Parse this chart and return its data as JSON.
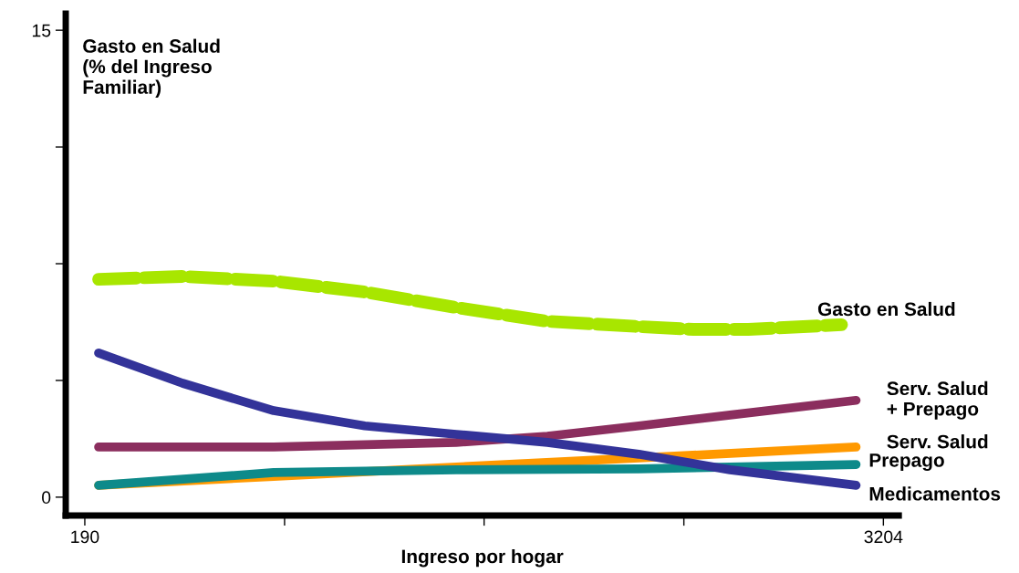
{
  "chart_data": {
    "type": "line",
    "ylabel": "Gasto en Salud\n(% del Ingreso\nFamiliar)",
    "xlabel": "Ingreso por hogar",
    "xlim": [
      118,
      3262
    ],
    "ylim": [
      -0.59,
      15.53
    ],
    "xticks": [
      190,
      {
        "value": 944,
        "label": null
      },
      {
        "value": 1697,
        "label": null
      },
      {
        "value": 2451,
        "label": null
      },
      3204
    ],
    "yticks": [
      0,
      {
        "value": 3.75,
        "label": null
      },
      {
        "value": 7.5,
        "label": null
      },
      {
        "value": 11.25,
        "label": null
      },
      15
    ],
    "grid": false,
    "legend": false,
    "series": [
      {
        "name": "Gasto en Salud",
        "color": "#a8e600",
        "line_style": "dashed",
        "x": [
          242,
          559,
          903,
          1247,
          1592,
          1936,
          2281,
          2488,
          2694,
          3046
        ],
        "values": [
          7.0,
          7.09,
          6.94,
          6.59,
          6.09,
          5.65,
          5.48,
          5.39,
          5.39,
          5.54
        ]
      },
      {
        "name": "Serv. Salud\n+ Prepago",
        "color": "#8b2e5e",
        "line_style": "solid",
        "x": [
          242,
          903,
          1592,
          1936,
          2281,
          2625,
          3101
        ],
        "values": [
          1.61,
          1.61,
          1.76,
          1.96,
          2.29,
          2.64,
          3.11
        ]
      },
      {
        "name": "Serv. Salud",
        "color": "#ff9900",
        "line_style": "solid",
        "x": [
          242,
          903,
          1592,
          2281,
          3101
        ],
        "values": [
          0.38,
          0.67,
          0.97,
          1.26,
          1.61
        ]
      },
      {
        "name": "Prepago",
        "color": "#0e8a8a",
        "line_style": "solid",
        "x": [
          242,
          903,
          1592,
          2281,
          3101
        ],
        "values": [
          0.38,
          0.79,
          0.88,
          0.91,
          1.05
        ]
      },
      {
        "name": "Medicamentos",
        "color": "#333399",
        "line_style": "solid",
        "x": [
          242,
          559,
          903,
          1247,
          1592,
          1936,
          2281,
          2625,
          3101
        ],
        "values": [
          4.63,
          3.66,
          2.78,
          2.29,
          2.02,
          1.76,
          1.38,
          0.88,
          0.38
        ]
      }
    ]
  }
}
